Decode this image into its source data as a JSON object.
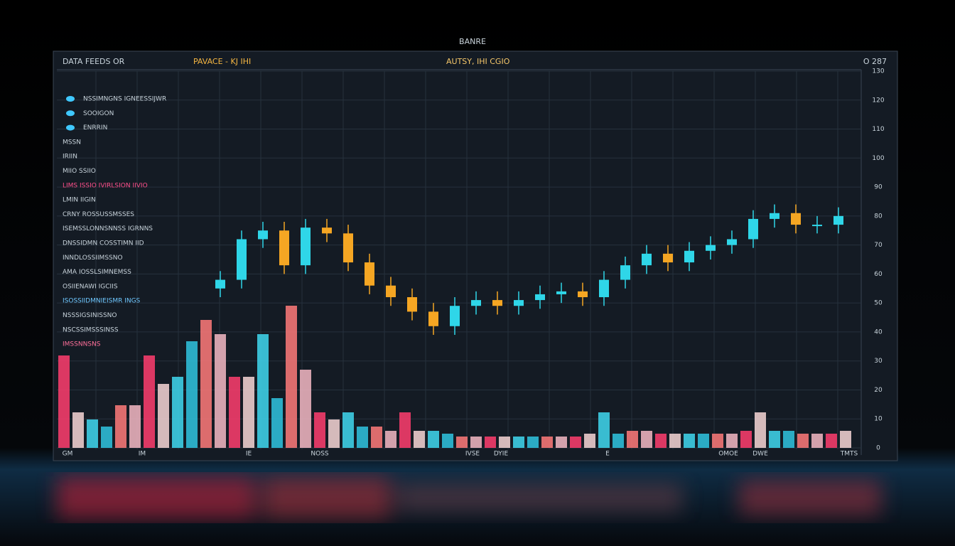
{
  "header": {
    "title": "BANRE",
    "labels": [
      "DATA FEEDS OR",
      "PAVACE - KJ IHI",
      "AUTSY, IHI CGIO",
      "O 287"
    ]
  },
  "sidebar": [
    "NSSIMNGNS IGNEESSIJWR",
    "SOOIGON",
    "ENRRIN",
    "MSSN",
    "IRIIN",
    "MIIO SSIIO",
    "LIMS ISSIO IVIRLSION IIVIO",
    "LMIN IIGIN",
    "CRNY ROSSUSSMSSES",
    "ISEMSSLONNSNNSS IGRNNS",
    "DNSSIDMN COSSTIMN IID",
    "INNDLOSSIIMSSNO",
    "AMA IOSSLSIMNEMSS",
    "OSIIENAWI IGCIIS",
    "ISOSSIIDMNIEISMR INGS",
    "NSSSIGSINISSNO",
    "NSCSSIMSSSINSS",
    "IMSSNNSNS"
  ],
  "chart_data": {
    "type": "candlestick",
    "x": [
      11.5,
      13,
      14.5,
      16,
      17.5,
      19,
      20.5,
      22,
      23.5,
      25,
      26.5,
      28,
      29.5,
      31,
      32.5,
      34,
      35.5,
      37,
      38.5,
      40,
      41.5,
      43,
      44.5,
      46,
      47.5,
      49,
      50.5,
      52,
      53.5,
      55
    ],
    "open": [
      55,
      58,
      72,
      75,
      63,
      76,
      74,
      64,
      56,
      52,
      47,
      42,
      49,
      51,
      49,
      51,
      53,
      54,
      52,
      58,
      63,
      67,
      64,
      68,
      70,
      72,
      79,
      81,
      77,
      77
    ],
    "high": [
      61,
      75,
      78,
      78,
      79,
      79,
      77,
      67,
      59,
      55,
      50,
      52,
      54,
      54,
      54,
      56,
      57,
      57,
      61,
      66,
      70,
      70,
      71,
      73,
      75,
      82,
      84,
      84,
      80,
      83
    ],
    "low": [
      52,
      55,
      69,
      60,
      60,
      71,
      61,
      53,
      49,
      44,
      39,
      39,
      46,
      46,
      46,
      48,
      50,
      49,
      49,
      55,
      60,
      61,
      61,
      65,
      67,
      69,
      76,
      74,
      74,
      74
    ],
    "close": [
      58,
      72,
      75,
      63,
      76,
      74,
      64,
      56,
      52,
      47,
      42,
      49,
      51,
      49,
      51,
      53,
      54,
      52,
      58,
      63,
      67,
      64,
      68,
      70,
      72,
      79,
      81,
      77,
      77,
      80
    ],
    "up_color": "#2fd6e8",
    "down_color": "#f5a623",
    "volume": {
      "axis": "y2",
      "palette": [
        "#ff3d6e",
        "#f7d6d6",
        "#3fd8f0",
        "#2fc4e0",
        "#ff7a7a",
        "#f5b8c4"
      ],
      "values": [
        65,
        25,
        20,
        15,
        30,
        30,
        65,
        45,
        50,
        75,
        90,
        80,
        50,
        50,
        80,
        35,
        100,
        55,
        25,
        20,
        25,
        15,
        15,
        12,
        25,
        12,
        12,
        10,
        8,
        8,
        8,
        8,
        8,
        8,
        8,
        8,
        8,
        10,
        25,
        10,
        12,
        12,
        10,
        10,
        10,
        10,
        10,
        10,
        12,
        25,
        12,
        12,
        10,
        10,
        10,
        12
      ]
    },
    "xlim": [
      0,
      56
    ],
    "xticks": [
      {
        "value": 0.75,
        "label": "GM"
      },
      {
        "value": 6,
        "label": "IM"
      },
      {
        "value": 13.5,
        "label": "IE"
      },
      {
        "value": 18.5,
        "label": "NOSS"
      },
      {
        "value": 29.25,
        "label": "IVSE"
      },
      {
        "value": 31.25,
        "label": "DYIE"
      },
      {
        "value": 38.75,
        "label": "E"
      },
      {
        "value": 47.25,
        "label": "OMOE"
      },
      {
        "value": 49.5,
        "label": "DWE"
      },
      {
        "value": 55.75,
        "label": "TMTS"
      }
    ],
    "ylim": [
      0,
      130
    ],
    "yticks": [
      0,
      10,
      20,
      30,
      40,
      50,
      60,
      70,
      80,
      90,
      100,
      110,
      120,
      130
    ],
    "y2lim": [
      0,
      100
    ],
    "grid": true
  }
}
